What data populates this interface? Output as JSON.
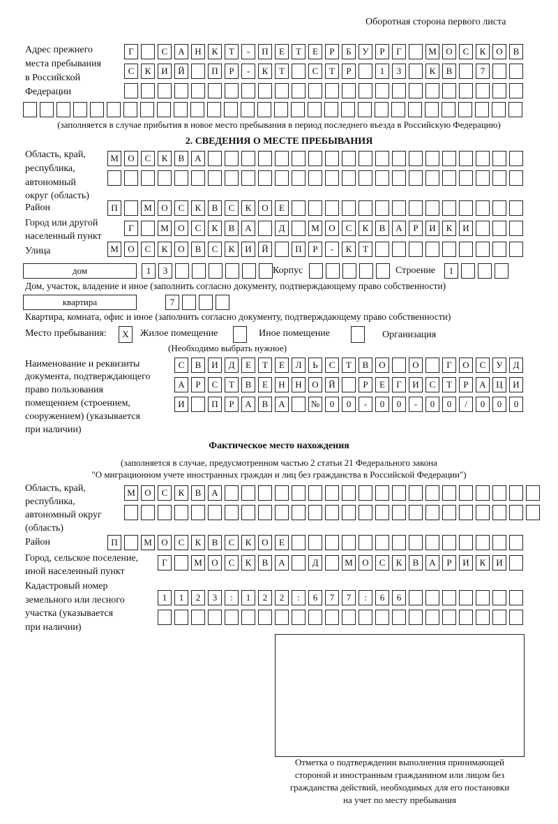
{
  "header": {
    "page_side": "Оборотная сторона первого листа"
  },
  "previous_address": {
    "label": [
      "Адрес прежнего",
      "места пребывания",
      "в Российской",
      "Федерации"
    ],
    "rows": [
      [
        "Г",
        "",
        "С",
        "А",
        "Н",
        "К",
        "Т",
        "-",
        "П",
        "Е",
        "Т",
        "Е",
        "Р",
        "Б",
        "У",
        "Р",
        "Г",
        "",
        "М",
        "О",
        "С",
        "К",
        "О",
        "В"
      ],
      [
        "С",
        "К",
        "И",
        "Й",
        "",
        "П",
        "Р",
        "-",
        "К",
        "Т",
        "",
        "С",
        "Т",
        "Р",
        "",
        "1",
        "3",
        "",
        "К",
        "В",
        "",
        "7",
        "",
        ""
      ],
      [
        "",
        "",
        "",
        "",
        "",
        "",
        "",
        "",
        "",
        "",
        "",
        "",
        "",
        "",
        "",
        "",
        "",
        "",
        "",
        "",
        "",
        "",
        "",
        ""
      ],
      [
        "",
        "",
        "",
        "",
        "",
        "",
        "",
        "",
        "",
        "",
        "",
        "",
        "",
        "",
        "",
        "",
        "",
        "",
        "",
        "",
        "",
        "",
        "",
        "",
        "",
        "",
        "",
        "",
        "",
        ""
      ]
    ],
    "note": "(заполняется в случае прибытия в новое место пребывания в период последнего въезда в Российскую Федерацию)"
  },
  "section2": {
    "title": "2. СВЕДЕНИЯ О МЕСТЕ ПРЕБЫВАНИЯ",
    "region_label": [
      "Область, край,",
      "республика,",
      "автономный",
      "округ (область)"
    ],
    "region_rows": [
      [
        "М",
        "О",
        "С",
        "К",
        "В",
        "А",
        "",
        "",
        "",
        "",
        "",
        "",
        "",
        "",
        "",
        "",
        "",
        "",
        "",
        "",
        "",
        "",
        "",
        "",
        ""
      ],
      [
        "",
        "",
        "",
        "",
        "",
        "",
        "",
        "",
        "",
        "",
        "",
        "",
        "",
        "",
        "",
        "",
        "",
        "",
        "",
        "",
        "",
        "",
        "",
        "",
        ""
      ]
    ],
    "district_label": "Район",
    "district": [
      "П",
      "",
      "М",
      "О",
      "С",
      "К",
      "В",
      "С",
      "К",
      "О",
      "Е",
      "",
      "",
      "",
      "",
      "",
      "",
      "",
      "",
      "",
      "",
      "",
      "",
      "",
      ""
    ],
    "city_label": [
      "Город или другой",
      "населенный пункт"
    ],
    "city": [
      "Г",
      "",
      "М",
      "О",
      "С",
      "К",
      "В",
      "А",
      "",
      "Д",
      "",
      "М",
      "О",
      "С",
      "К",
      "В",
      "А",
      "Р",
      "И",
      "К",
      "И",
      "",
      "",
      ""
    ],
    "street_label": "Улица",
    "street": [
      "М",
      "О",
      "С",
      "К",
      "О",
      "В",
      "С",
      "К",
      "И",
      "Й",
      "",
      "П",
      "Р",
      "-",
      "К",
      "Т",
      "",
      "",
      "",
      "",
      "",
      "",
      "",
      "",
      ""
    ],
    "house_type": "дом",
    "house": [
      "1",
      "3",
      "",
      "",
      "",
      "",
      "",
      ""
    ],
    "korpus_label": "Корпус",
    "korpus": [
      "",
      "",
      "",
      "",
      ""
    ],
    "building_label": "Строение",
    "building": [
      "1",
      "",
      "",
      ""
    ],
    "house_note": "Дом, участок, владение и иное (заполнить согласно документу, подтверждающему право собственности)",
    "flat_type": "квартира",
    "flat": [
      "7",
      "",
      "",
      ""
    ],
    "flat_note": "Квартира, комната, офис и иное (заполнить согласно документу, подтверждающему право собственности)",
    "stay_place_label": "Место пребывания:",
    "options": [
      {
        "label": "Жилое помещение",
        "mark": "X"
      },
      {
        "label": "Иное помещение",
        "mark": ""
      },
      {
        "label": "Организация",
        "mark": ""
      }
    ],
    "choose_hint": "(Необходимо выбрать нужное)",
    "doc_label": [
      "Наименование и реквизиты",
      "документа, подтверждающего",
      "право пользования",
      "помещением (строением,",
      "сооружением) (указывается",
      "при наличии)"
    ],
    "doc_rows": [
      [
        "С",
        "В",
        "И",
        "Д",
        "Е",
        "Т",
        "Е",
        "Л",
        "Ь",
        "С",
        "Т",
        "В",
        "О",
        "",
        "О",
        "",
        "Г",
        "О",
        "С",
        "У",
        "Д"
      ],
      [
        "А",
        "Р",
        "С",
        "Т",
        "В",
        "Е",
        "Н",
        "Н",
        "О",
        "Й",
        "",
        "Р",
        "Е",
        "Г",
        "И",
        "С",
        "Т",
        "Р",
        "А",
        "Ц",
        "И"
      ],
      [
        "И",
        "",
        "П",
        "Р",
        "А",
        "В",
        "А",
        "",
        "№",
        "0",
        "0",
        "-",
        "0",
        "0",
        "-",
        "0",
        "0",
        "/",
        "0",
        "0",
        "0"
      ]
    ]
  },
  "actual": {
    "title": "Фактическое место нахождения",
    "note1": "(заполняется в случае, предусмотренном частью 2 статьи 21 Федерального закона",
    "note2": "\"О миграционном учете иностранных граждан и лиц без гражданства в Российской Федерации\")",
    "region_label": [
      "Область, край,",
      "республика,",
      "автономный округ",
      "(область)"
    ],
    "region_rows": [
      [
        "М",
        "О",
        "С",
        "К",
        "В",
        "А",
        "",
        "",
        "",
        "",
        "",
        "",
        "",
        "",
        "",
        "",
        "",
        "",
        "",
        "",
        "",
        "",
        "",
        "",
        ""
      ],
      [
        "",
        "",
        "",
        "",
        "",
        "",
        "",
        "",
        "",
        "",
        "",
        "",
        "",
        "",
        "",
        "",
        "",
        "",
        "",
        "",
        "",
        "",
        "",
        "",
        ""
      ]
    ],
    "district_label": "Район",
    "district": [
      "П",
      "",
      "М",
      "О",
      "С",
      "К",
      "В",
      "С",
      "К",
      "О",
      "Е",
      "",
      "",
      "",
      "",
      "",
      "",
      "",
      "",
      "",
      "",
      "",
      "",
      "",
      ""
    ],
    "city_label": [
      "Город, сельское поселение,",
      "иной населенный пункт"
    ],
    "city": [
      "Г",
      "",
      "М",
      "О",
      "С",
      "К",
      "В",
      "А",
      "",
      "Д",
      "",
      "М",
      "О",
      "С",
      "К",
      "В",
      "А",
      "Р",
      "И",
      "К",
      "И",
      ""
    ],
    "cadastre_label": [
      "Кадастровый номер",
      "земельного или лесного",
      "участка (указывается",
      "при наличии)"
    ],
    "cadastre_rows": [
      [
        "1",
        "1",
        "2",
        "3",
        ":",
        "1",
        "2",
        "2",
        ":",
        "6",
        "7",
        "7",
        ":",
        "6",
        "6",
        "",
        "",
        "",
        "",
        "",
        "",
        ""
      ],
      [
        "",
        "",
        "",
        "",
        "",
        "",
        "",
        "",
        "",
        "",
        "",
        "",
        "",
        "",
        "",
        "",
        "",
        "",
        "",
        "",
        "",
        ""
      ]
    ]
  },
  "confirmation": {
    "caption": [
      "Отметка о подтверждении выполнения принимающей",
      "стороной и иностранным гражданином или лицом без",
      "гражданства действий, необходимых для его постановки",
      "на учет по месту пребывания"
    ]
  }
}
